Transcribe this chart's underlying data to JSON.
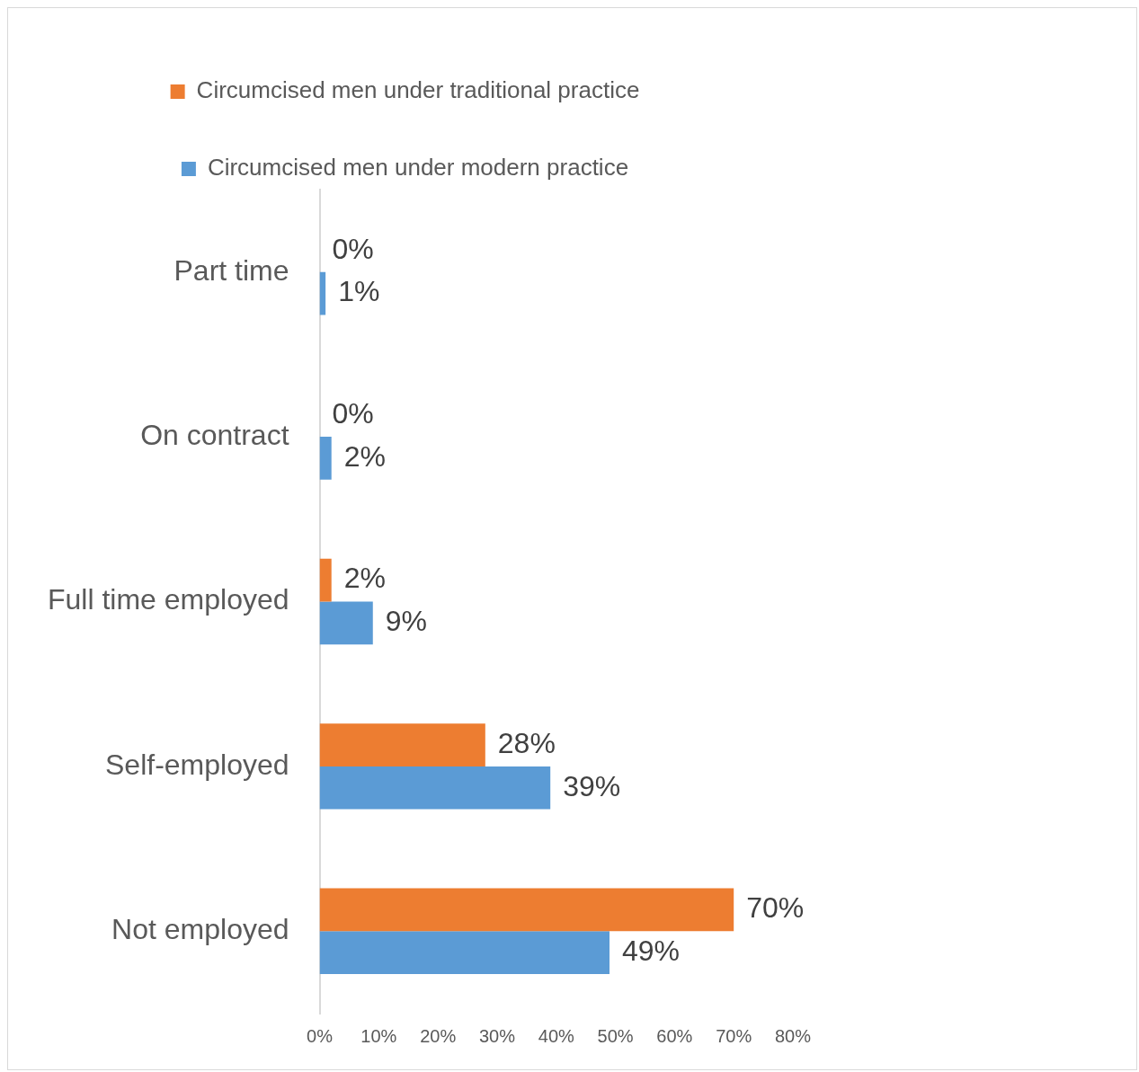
{
  "chart_data": {
    "type": "bar",
    "orientation": "horizontal",
    "categories": [
      "Part time",
      "On contract",
      "Full time employed",
      "Self-employed",
      "Not employed"
    ],
    "series": [
      {
        "name": "Circumcised men under traditional practice",
        "color": "#ed7d31",
        "values": [
          0,
          0,
          2,
          28,
          70
        ],
        "value_labels": [
          "0%",
          "0%",
          "2%",
          "28%",
          "70%"
        ]
      },
      {
        "name": "Circumcised men under modern practice",
        "color": "#5b9bd5",
        "values": [
          1,
          2,
          9,
          39,
          49
        ],
        "value_labels": [
          "1%",
          "2%",
          "9%",
          "39%",
          "49%"
        ]
      }
    ],
    "xlim": [
      0,
      80
    ],
    "xticks": [
      {
        "value": 0,
        "label": "0%"
      },
      {
        "value": 10,
        "label": "10%"
      },
      {
        "value": 20,
        "label": "20%"
      },
      {
        "value": 30,
        "label": "30%"
      },
      {
        "value": 40,
        "label": "40%"
      },
      {
        "value": 50,
        "label": "50%"
      },
      {
        "value": 60,
        "label": "60%"
      },
      {
        "value": 70,
        "label": "70%"
      },
      {
        "value": 80,
        "label": "80%"
      }
    ],
    "grid": false,
    "legend": "top"
  }
}
